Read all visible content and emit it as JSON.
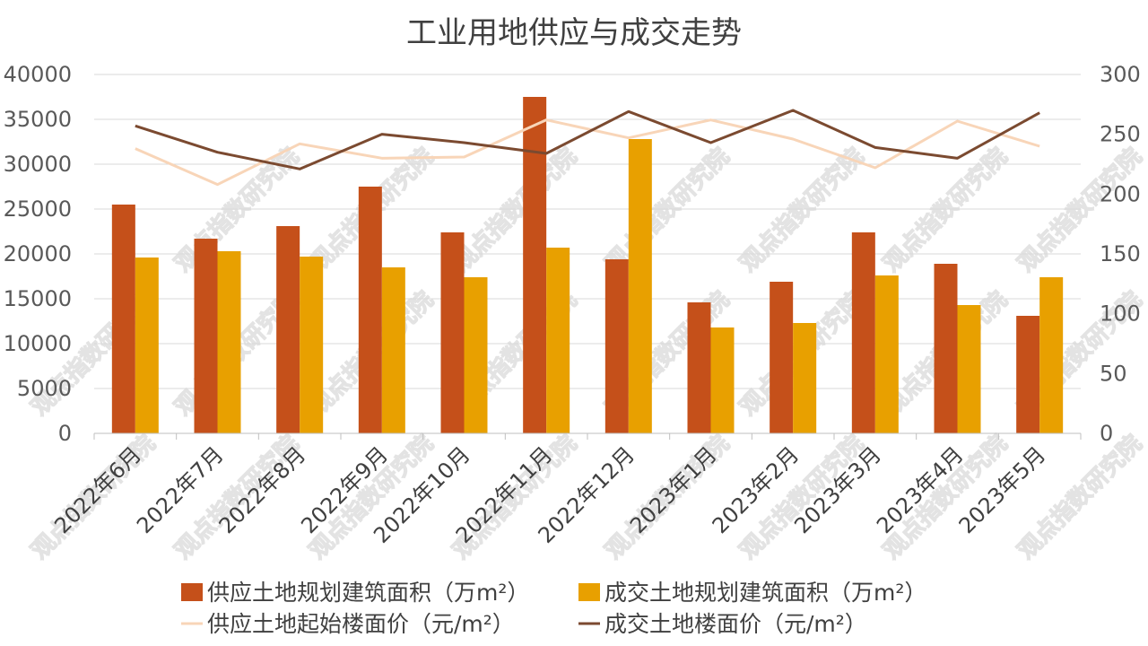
{
  "chart_data": {
    "type": "bar",
    "title": "工业用地供应与成交走势",
    "categories": [
      "2022年6月",
      "2022年7月",
      "2022年8月",
      "2022年9月",
      "2022年10月",
      "2022年11月",
      "2022年12月",
      "2023年1月",
      "2023年2月",
      "2023年3月",
      "2023年4月",
      "2023年5月"
    ],
    "left_axis": {
      "min": 0,
      "max": 40000,
      "ticks": [
        0,
        5000,
        10000,
        15000,
        20000,
        25000,
        30000,
        35000,
        40000
      ]
    },
    "right_axis": {
      "min": 0,
      "max": 300,
      "ticks": [
        0,
        50,
        100,
        150,
        200,
        250,
        300
      ]
    },
    "grid": true,
    "legend_position": "bottom",
    "series": [
      {
        "name": "供应土地规划建筑面积（万m²）",
        "type": "bar",
        "axis": "left",
        "color": "#c5501a",
        "values": [
          25500,
          21700,
          23100,
          27500,
          22400,
          37500,
          19400,
          14600,
          16900,
          22400,
          18900,
          13100
        ]
      },
      {
        "name": "成交土地规划建筑面积（万m²）",
        "type": "bar",
        "axis": "left",
        "color": "#e8a000",
        "values": [
          19600,
          20300,
          19700,
          18500,
          17400,
          20700,
          32800,
          11800,
          12300,
          17600,
          14300,
          17400
        ]
      },
      {
        "name": "供应土地起始楼面价（元/m²）",
        "type": "line",
        "axis": "right",
        "color": "#f8d5b8",
        "values": [
          238,
          208,
          242,
          230,
          231,
          262,
          247,
          262,
          246,
          222,
          261,
          240
        ]
      },
      {
        "name": "成交土地楼面价（元/m²）",
        "type": "line",
        "axis": "right",
        "color": "#7b4a30",
        "values": [
          257,
          235,
          221,
          250,
          243,
          234,
          269,
          243,
          270,
          239,
          230,
          268
        ]
      }
    ]
  },
  "watermark": "观点指数研究院"
}
